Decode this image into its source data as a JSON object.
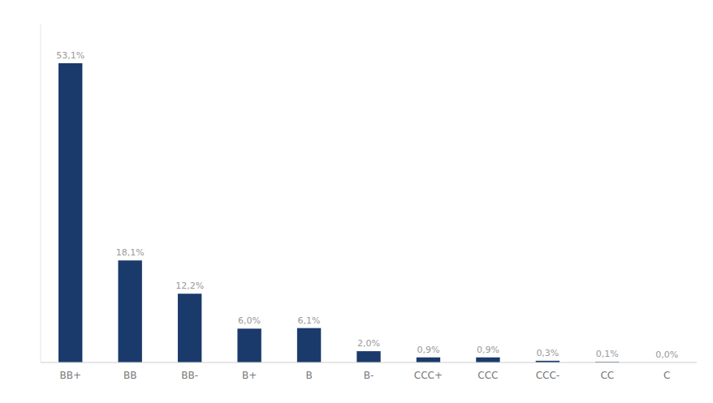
{
  "chart_data": {
    "type": "bar",
    "categories": [
      "BB+",
      "BB",
      "BB-",
      "B+",
      "B",
      "B-",
      "CCC+",
      "CCC",
      "CCC-",
      "CC",
      "C"
    ],
    "values": [
      53.1,
      18.1,
      12.2,
      6.0,
      6.1,
      2.0,
      0.9,
      0.9,
      0.3,
      0.1,
      0.0
    ],
    "value_labels": [
      "53,1%",
      "18,1%",
      "12,2%",
      "6,0%",
      "6,1%",
      "2,0%",
      "0,9%",
      "0,9%",
      "0,3%",
      "0,1%",
      "0,0%"
    ],
    "color": "#1a3a6b",
    "ylim": [
      0,
      60
    ],
    "grid": false,
    "data_labels": true,
    "tick_labels": "x"
  }
}
